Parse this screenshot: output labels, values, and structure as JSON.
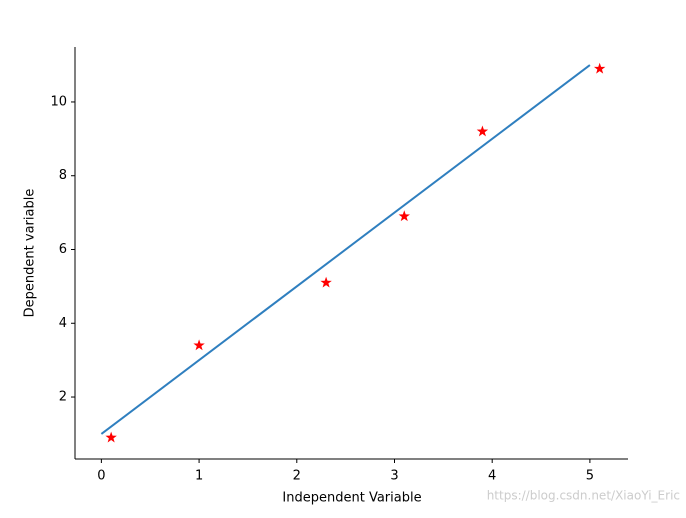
{
  "chart_data": {
    "type": "scatter",
    "xlabel": "Independent Variable",
    "ylabel": "Dependent variable",
    "watermark": "https://blog.csdn.net/XiaoYi_Eric",
    "series": [
      {
        "kind": "scatter",
        "marker": "star",
        "color": "#ff0000",
        "x": [
          0.1,
          1,
          2.3,
          3.1,
          3.9,
          5.1
        ],
        "values": [
          0.9,
          3.4,
          5.1,
          6.9,
          9.2,
          10.9
        ]
      },
      {
        "kind": "line",
        "color": "#2f7fbf",
        "x": [
          0,
          5
        ],
        "values": [
          1,
          11
        ]
      }
    ],
    "xlim": [
      -0.27,
      5.39
    ],
    "ylim": [
      0.32,
      11.49
    ],
    "xticks": [
      0,
      1,
      2,
      3,
      4,
      5
    ],
    "yticks": [
      2,
      4,
      6,
      8,
      10
    ],
    "grid": false
  }
}
